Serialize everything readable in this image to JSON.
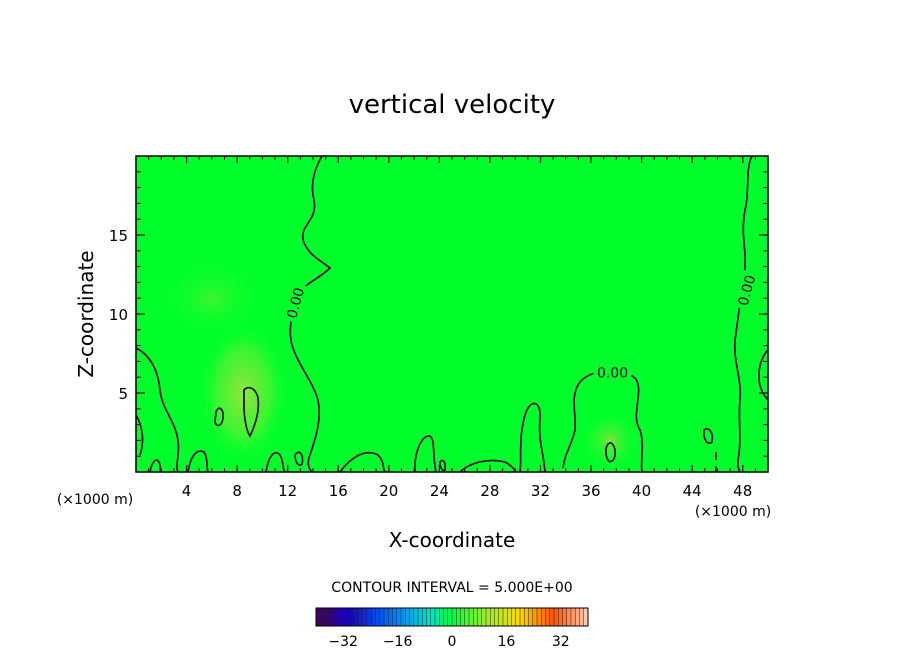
{
  "chart_data": {
    "type": "heatmap",
    "title": "vertical velocity",
    "xlabel": "X-coordinate",
    "ylabel": "Z-coordinate",
    "x_unit": "(×1000 m)",
    "y_unit": "(×1000 m)",
    "xlim": [
      0,
      50
    ],
    "ylim": [
      0,
      20
    ],
    "x_ticks": [
      4,
      8,
      12,
      16,
      20,
      24,
      28,
      32,
      36,
      40,
      44,
      48
    ],
    "y_ticks": [
      5,
      10,
      15
    ],
    "contour_interval_text": "CONTOUR INTERVAL = 5.000E+00",
    "contour_labels": [
      {
        "text": "0.00",
        "x": 12.6,
        "y": 10.7
      },
      {
        "text": "0.00",
        "x": 37.7,
        "y": 6.3
      },
      {
        "text": "0.00",
        "x": 48.3,
        "y": 11.5
      }
    ],
    "colorbar": {
      "min": -40,
      "max": 40,
      "ticks": [
        -32,
        -16,
        0,
        16,
        32
      ]
    },
    "background_color": "#00ff2a",
    "warm_patches": [
      {
        "x": 8.5,
        "y": 5,
        "sx": 3.5,
        "sy": 4.5,
        "color": "#8ce63a"
      },
      {
        "x": 37.5,
        "y": 2,
        "sx": 2.5,
        "sy": 2,
        "color": "#7fe83a"
      },
      {
        "x": 6,
        "y": 11,
        "sx": 4,
        "sy": 2.5,
        "color": "#4cf234"
      }
    ]
  }
}
